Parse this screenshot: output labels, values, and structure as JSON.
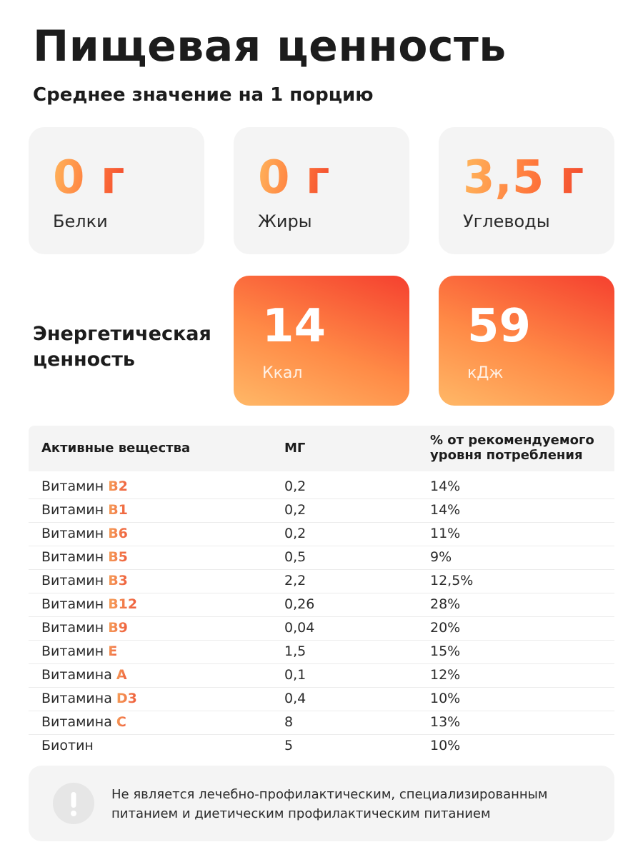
{
  "header": {
    "title": "Пищевая ценность",
    "subtitle": "Среднее значение на 1 порцию"
  },
  "macros": [
    {
      "value": "0 г",
      "label": "Белки"
    },
    {
      "value": "0 г",
      "label": "Жиры"
    },
    {
      "value": "3,5 г",
      "label": "Углеводы"
    }
  ],
  "energy": {
    "title_line1": "Энергетическая",
    "title_line2": "ценность",
    "kcal": {
      "value": "14",
      "unit": "Ккал"
    },
    "kj": {
      "value": "59",
      "unit": "кДж"
    }
  },
  "table": {
    "headers": {
      "substance": "Активные вещества",
      "mg": "МГ",
      "pct_line1": "% от рекомендуемого",
      "pct_line2": "уровня потребления"
    },
    "rows": [
      {
        "prefix": "Витамин",
        "code": "B2",
        "mg": "0,2",
        "pct": "14%"
      },
      {
        "prefix": "Витамин",
        "code": "B1",
        "mg": "0,2",
        "pct": "14%"
      },
      {
        "prefix": "Витамин",
        "code": "B6",
        "mg": "0,2",
        "pct": "11%"
      },
      {
        "prefix": "Витамин",
        "code": "B5",
        "mg": "0,5",
        "pct": "9%"
      },
      {
        "prefix": "Витамин",
        "code": "B3",
        "mg": "2,2",
        "pct": "12,5%"
      },
      {
        "prefix": "Витамин",
        "code": "B12",
        "mg": "0,26",
        "pct": "28%"
      },
      {
        "prefix": "Витамин",
        "code": "B9",
        "mg": "0,04",
        "pct": "20%"
      },
      {
        "prefix": "Витамин",
        "code": "E",
        "mg": "1,5",
        "pct": "15%"
      },
      {
        "prefix": "Витамина",
        "code": "A",
        "mg": "0,1",
        "pct": "12%"
      },
      {
        "prefix": "Витамина",
        "code": "D3",
        "mg": "0,4",
        "pct": "10%"
      },
      {
        "prefix": "Витамина",
        "code": "C",
        "mg": "8",
        "pct": "13%"
      },
      {
        "prefix": "Биотин",
        "code": "",
        "mg": "5",
        "pct": "10%"
      }
    ]
  },
  "note": {
    "icon": "exclamation-icon",
    "line1": "Не является лечебно-профилактическим, специализированным",
    "line2": "питанием и диетическим профилактическим питанием"
  },
  "colors": {
    "accent_orange": "#ff7a3d",
    "accent_red": "#f5402f",
    "card_bg": "#f4f4f4"
  }
}
